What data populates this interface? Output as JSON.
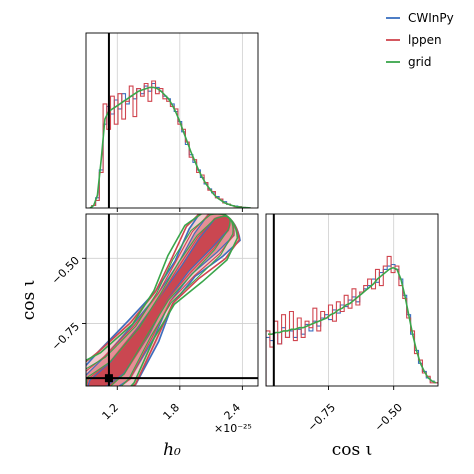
{
  "chart_data": {
    "type": "corner",
    "parameters": [
      {
        "key": "h0",
        "label": "h₀",
        "lim": [
          0.9,
          2.55
        ],
        "ticks": [
          1.2,
          1.8,
          2.4
        ],
        "tick_labels": [
          "1.2",
          "1.8",
          "2.4"
        ],
        "offset_text": "×10⁻²⁵",
        "injected": 1.12
      },
      {
        "key": "cosi",
        "label": "cos ι",
        "lim": [
          -0.99,
          -0.33
        ],
        "ticks": [
          -0.75,
          -0.5
        ],
        "tick_labels": [
          "−0.75",
          "−0.50"
        ],
        "injected": -0.96
      }
    ],
    "legend": {
      "placement": "top-right",
      "entries": [
        {
          "name": "CWInPy",
          "color": "#3a6fbf"
        },
        {
          "name": "lppen",
          "color": "#d0454f"
        },
        {
          "name": "grid",
          "color": "#3aa64b"
        }
      ]
    },
    "grid": true,
    "panels": {
      "h0_marginal": {
        "bin_edges": [
          0.92,
          2.5
        ],
        "bins": 44,
        "series": [
          {
            "name": "CWInPy",
            "values": [
              0,
              0.02,
              0.08,
              0.3,
              0.66,
              0.8,
              0.74,
              0.85,
              0.78,
              0.9,
              0.82,
              0.88,
              0.86,
              0.94,
              0.9,
              0.96,
              0.92,
              0.98,
              0.95,
              0.92,
              0.88,
              0.86,
              0.82,
              0.76,
              0.68,
              0.6,
              0.5,
              0.42,
              0.36,
              0.3,
              0.24,
              0.19,
              0.15,
              0.12,
              0.09,
              0.07,
              0.05,
              0.03,
              0.02,
              0.015,
              0.01,
              0.005,
              0.003,
              0
            ]
          },
          {
            "name": "lppen",
            "values": [
              0,
              0.02,
              0.06,
              0.28,
              0.82,
              0.62,
              0.88,
              0.66,
              0.9,
              0.7,
              0.84,
              0.96,
              0.72,
              0.94,
              0.88,
              0.98,
              0.84,
              1.0,
              0.9,
              0.94,
              0.86,
              0.84,
              0.8,
              0.78,
              0.66,
              0.62,
              0.52,
              0.4,
              0.38,
              0.28,
              0.26,
              0.2,
              0.14,
              0.13,
              0.08,
              0.07,
              0.04,
              0.03,
              0.02,
              0.01,
              0.01,
              0.005,
              0.002,
              0
            ]
          },
          {
            "name": "grid",
            "values": [
              0,
              0.02,
              0.1,
              0.38,
              0.7,
              0.76,
              0.78,
              0.8,
              0.82,
              0.84,
              0.86,
              0.88,
              0.9,
              0.92,
              0.93,
              0.94,
              0.95,
              0.95,
              0.94,
              0.92,
              0.89,
              0.86,
              0.81,
              0.75,
              0.68,
              0.6,
              0.52,
              0.44,
              0.37,
              0.3,
              0.24,
              0.19,
              0.15,
              0.11,
              0.08,
              0.06,
              0.04,
              0.03,
              0.02,
              0.012,
              0.007,
              0.004,
              0.002,
              0
            ]
          }
        ]
      },
      "cosi_marginal": {
        "bin_edges": [
          -0.99,
          -0.33
        ],
        "bins": 44,
        "series": [
          {
            "name": "CWInPy",
            "values": [
              0.3,
              0.28,
              0.33,
              0.26,
              0.36,
              0.3,
              0.34,
              0.3,
              0.35,
              0.32,
              0.38,
              0.34,
              0.4,
              0.37,
              0.42,
              0.44,
              0.41,
              0.47,
              0.45,
              0.5,
              0.49,
              0.53,
              0.55,
              0.52,
              0.58,
              0.6,
              0.62,
              0.66,
              0.64,
              0.7,
              0.72,
              0.74,
              0.75,
              0.72,
              0.66,
              0.56,
              0.44,
              0.32,
              0.22,
              0.14,
              0.09,
              0.05,
              0.03,
              0.02
            ]
          },
          {
            "name": "lppen",
            "values": [
              0.34,
              0.24,
              0.4,
              0.26,
              0.44,
              0.3,
              0.46,
              0.28,
              0.42,
              0.3,
              0.4,
              0.36,
              0.48,
              0.34,
              0.46,
              0.42,
              0.5,
              0.4,
              0.52,
              0.46,
              0.56,
              0.48,
              0.6,
              0.5,
              0.58,
              0.62,
              0.66,
              0.6,
              0.72,
              0.62,
              0.74,
              0.8,
              0.7,
              0.74,
              0.62,
              0.54,
              0.42,
              0.34,
              0.2,
              0.16,
              0.08,
              0.06,
              0.02,
              0.02
            ]
          },
          {
            "name": "grid",
            "values": [
              0.32,
              0.32,
              0.33,
              0.33,
              0.34,
              0.34,
              0.35,
              0.35,
              0.36,
              0.36,
              0.37,
              0.38,
              0.39,
              0.4,
              0.41,
              0.42,
              0.44,
              0.45,
              0.47,
              0.48,
              0.5,
              0.51,
              0.53,
              0.55,
              0.57,
              0.59,
              0.61,
              0.63,
              0.66,
              0.68,
              0.7,
              0.72,
              0.73,
              0.72,
              0.66,
              0.56,
              0.44,
              0.32,
              0.22,
              0.14,
              0.09,
              0.05,
              0.03,
              0.02
            ]
          }
        ]
      },
      "joint_2d": {
        "ridge": [
          [
            0.98,
            -0.99
          ],
          [
            1.2,
            -0.92
          ],
          [
            1.45,
            -0.78
          ],
          [
            1.65,
            -0.65
          ],
          [
            1.85,
            -0.54
          ],
          [
            2.05,
            -0.44
          ],
          [
            2.2,
            -0.37
          ]
        ],
        "contour_levels": [
          "inner",
          "middle",
          "outer"
        ],
        "series": [
          "CWInPy",
          "lppen",
          "grid"
        ]
      }
    }
  }
}
